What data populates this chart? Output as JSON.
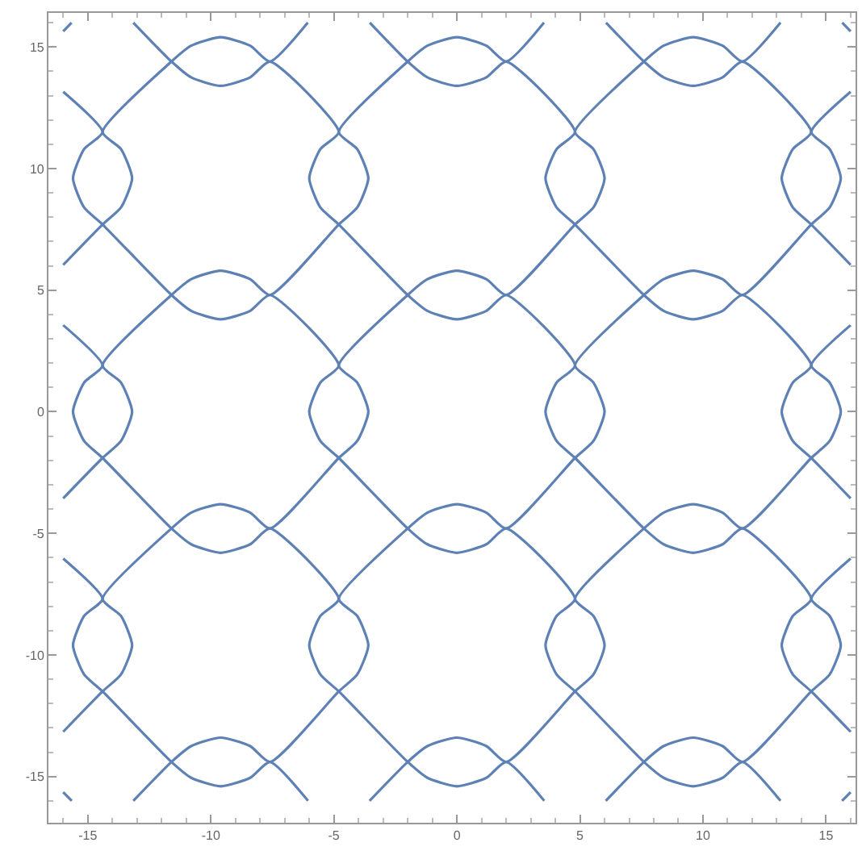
{
  "chart_data": {
    "type": "line",
    "xlim": [
      -16.6,
      16.2
    ],
    "ylim": [
      -16.9,
      16.4
    ],
    "xticks": [
      -15,
      -10,
      -5,
      0,
      5,
      10,
      15
    ],
    "yticks": [
      -15,
      -10,
      -5,
      0,
      5,
      10,
      15
    ],
    "grid": false,
    "series": [
      {
        "color": "#5e81b5",
        "x": [
          -16,
          -15.66
        ],
        "values": [
          15.64,
          16
        ]
      },
      {
        "color": "#5e81b5",
        "x": [
          -16,
          -14.4,
          -13.65,
          -13.2,
          -13.65,
          -14.4,
          -11.6,
          -10.8,
          -9.6,
          -8.4,
          -7.6,
          -6.06
        ],
        "values": [
          6.04,
          7.7,
          8.4,
          9.6,
          10.8,
          11.5,
          14.4,
          15.05,
          15.4,
          15.05,
          14.4,
          16
        ]
      },
      {
        "color": "#5e81b5",
        "x": [
          -16,
          -14.4,
          -13.65,
          -13.2,
          -13.65,
          -14.4,
          -11.6,
          -10.8,
          -9.6,
          -8.4,
          -7.6,
          -4.8,
          -4.05,
          -3.6,
          -4.05,
          -4.8,
          -2,
          -1.2,
          0,
          1.2,
          2,
          3.54
        ],
        "values": [
          -3.56,
          -1.9,
          -1.2,
          0,
          1.2,
          1.9,
          4.8,
          5.45,
          5.8,
          5.45,
          4.8,
          7.7,
          8.4,
          9.6,
          10.8,
          11.5,
          14.4,
          15.05,
          15.4,
          15.05,
          14.4,
          16
        ]
      },
      {
        "color": "#5e81b5",
        "x": [
          -16,
          -14.4,
          -13.65,
          -13.2,
          -13.65,
          -14.4,
          -11.6,
          -10.8,
          -9.6,
          -8.4,
          -7.6,
          -4.8,
          -4.05,
          -3.6,
          -4.05,
          -4.8,
          -2,
          -1.2,
          0,
          1.2,
          2,
          4.8,
          5.55,
          6,
          5.55,
          4.8,
          7.6,
          8.4,
          9.6,
          10.8,
          11.6,
          13.15
        ],
        "values": [
          -13.16,
          -11.5,
          -10.8,
          -9.6,
          -8.4,
          -7.7,
          -4.8,
          -4.15,
          -3.8,
          -4.15,
          -4.8,
          -1.9,
          -1.2,
          0,
          1.2,
          1.9,
          4.8,
          5.45,
          5.8,
          5.45,
          4.8,
          7.7,
          8.4,
          9.6,
          10.8,
          11.5,
          14.4,
          15.05,
          15.4,
          15.05,
          14.4,
          16
        ]
      },
      {
        "color": "#5e81b5",
        "x": [
          -13.15,
          -11.6,
          -10.8,
          -9.6,
          -8.4,
          -7.6,
          -4.8,
          -4.05,
          -3.6,
          -4.05,
          -4.8,
          -2,
          -1.2,
          0,
          1.2,
          2,
          4.8,
          5.55,
          6,
          5.55,
          4.8,
          7.6,
          8.4,
          9.6,
          10.8,
          11.6,
          14.4,
          15.15,
          15.6,
          15.15,
          14.4,
          16
        ],
        "values": [
          -16,
          -14.4,
          -13.75,
          -13.4,
          -13.75,
          -14.4,
          -11.5,
          -10.8,
          -9.6,
          -8.4,
          -7.7,
          -4.8,
          -4.15,
          -3.8,
          -4.15,
          -4.8,
          -1.9,
          -1.2,
          0,
          1.2,
          1.9,
          4.8,
          5.45,
          5.8,
          5.45,
          4.8,
          7.7,
          8.4,
          9.6,
          10.8,
          11.5,
          13.16
        ]
      },
      {
        "color": "#5e81b5",
        "x": [
          -3.55,
          -2,
          -1.2,
          0,
          1.2,
          2,
          4.8,
          5.55,
          6,
          5.55,
          4.8,
          7.6,
          8.4,
          9.6,
          10.8,
          11.6,
          14.4,
          15.15,
          15.6,
          15.15,
          14.4,
          16
        ],
        "values": [
          -16,
          -14.4,
          -13.75,
          -13.4,
          -13.75,
          -14.4,
          -11.5,
          -10.8,
          -9.6,
          -8.4,
          -7.7,
          -4.8,
          -4.15,
          -3.8,
          -4.15,
          -4.8,
          -1.9,
          -1.2,
          0,
          1.2,
          1.9,
          3.56
        ]
      },
      {
        "color": "#5e81b5",
        "x": [
          6.05,
          7.6,
          8.4,
          9.6,
          10.8,
          11.6,
          14.4,
          15.15,
          15.6,
          15.15,
          14.4,
          16
        ],
        "values": [
          -16,
          -14.4,
          -13.75,
          -13.4,
          -13.75,
          -14.4,
          -11.5,
          -10.8,
          -9.6,
          -8.4,
          -7.7,
          -6.04
        ]
      },
      {
        "color": "#5e81b5",
        "x": [
          15.65,
          16
        ],
        "values": [
          -16,
          -15.64
        ]
      },
      {
        "color": "#5e81b5",
        "x": [
          16,
          15.66
        ],
        "values": [
          15.64,
          16
        ]
      },
      {
        "color": "#5e81b5",
        "x": [
          16,
          14.4,
          13.65,
          13.2,
          13.65,
          14.4,
          11.6,
          10.8,
          9.6,
          8.4,
          7.6,
          6.06
        ],
        "values": [
          6.04,
          7.7,
          8.4,
          9.6,
          10.8,
          11.5,
          14.4,
          13.75,
          13.4,
          13.75,
          14.4,
          16
        ]
      },
      {
        "color": "#5e81b5",
        "x": [
          16,
          14.4,
          13.65,
          13.2,
          13.65,
          14.4,
          11.6,
          10.8,
          9.6,
          8.4,
          7.6,
          4.8,
          4.05,
          3.6,
          4.05,
          4.8,
          2,
          1.2,
          0,
          -1.2,
          -2,
          -3.54
        ],
        "values": [
          -3.56,
          -1.9,
          -1.2,
          0,
          1.2,
          1.9,
          4.8,
          4.15,
          3.8,
          4.15,
          4.8,
          7.7,
          8.4,
          9.6,
          10.8,
          11.5,
          14.4,
          13.75,
          13.4,
          13.75,
          14.4,
          16
        ]
      },
      {
        "color": "#5e81b5",
        "x": [
          16,
          14.4,
          13.65,
          13.2,
          13.65,
          14.4,
          11.6,
          10.8,
          9.6,
          8.4,
          7.6,
          4.8,
          4.05,
          3.6,
          4.05,
          4.8,
          2,
          1.2,
          0,
          -1.2,
          -2,
          -4.8,
          -5.55,
          -6,
          -5.55,
          -4.8,
          -7.6,
          -8.4,
          -9.6,
          -10.8,
          -11.6,
          -13.15
        ],
        "values": [
          -13.16,
          -11.5,
          -10.8,
          -9.6,
          -8.4,
          -7.7,
          -4.8,
          -5.45,
          -5.8,
          -5.45,
          -4.8,
          -1.9,
          -1.2,
          0,
          1.2,
          1.9,
          4.8,
          4.15,
          3.8,
          4.15,
          4.8,
          7.7,
          8.4,
          9.6,
          10.8,
          11.5,
          14.4,
          13.75,
          13.4,
          13.75,
          14.4,
          16
        ]
      },
      {
        "color": "#5e81b5",
        "x": [
          13.15,
          11.6,
          10.8,
          9.6,
          8.4,
          7.6,
          4.8,
          4.05,
          3.6,
          4.05,
          4.8,
          2,
          1.2,
          0,
          -1.2,
          -2,
          -4.8,
          -5.55,
          -6,
          -5.55,
          -4.8,
          -7.6,
          -8.4,
          -9.6,
          -10.8,
          -11.6,
          -14.4,
          -15.15,
          -15.6,
          -15.15,
          -14.4,
          -16
        ],
        "values": [
          -16,
          -14.4,
          -15.05,
          -15.4,
          -15.05,
          -14.4,
          -11.5,
          -10.8,
          -9.6,
          -8.4,
          -7.7,
          -4.8,
          -5.45,
          -5.8,
          -5.45,
          -4.8,
          -1.9,
          -1.2,
          0,
          1.2,
          1.9,
          4.8,
          4.15,
          3.8,
          4.15,
          4.8,
          7.7,
          8.4,
          9.6,
          10.8,
          11.5,
          13.16
        ]
      },
      {
        "color": "#5e81b5",
        "x": [
          3.55,
          2,
          1.2,
          0,
          -1.2,
          -2,
          -4.8,
          -5.55,
          -6,
          -5.55,
          -4.8,
          -7.6,
          -8.4,
          -9.6,
          -10.8,
          -11.6,
          -14.4,
          -15.15,
          -15.6,
          -15.15,
          -14.4,
          -16
        ],
        "values": [
          -16,
          -14.4,
          -15.05,
          -15.4,
          -15.05,
          -14.4,
          -11.5,
          -10.8,
          -9.6,
          -8.4,
          -7.7,
          -4.8,
          -5.45,
          -5.8,
          -5.45,
          -4.8,
          -1.9,
          -1.2,
          0,
          1.2,
          1.9,
          3.56
        ]
      },
      {
        "color": "#5e81b5",
        "x": [
          -6.05,
          -7.6,
          -8.4,
          -9.6,
          -10.8,
          -11.6,
          -14.4,
          -15.15,
          -15.6,
          -15.15,
          -14.4,
          -16
        ],
        "values": [
          -16,
          -14.4,
          -15.05,
          -15.4,
          -15.05,
          -14.4,
          -11.5,
          -10.8,
          -9.6,
          -8.4,
          -7.7,
          -6.04
        ]
      },
      {
        "color": "#5e81b5",
        "x": [
          -15.65,
          -16
        ],
        "values": [
          -16,
          -15.64
        ]
      }
    ]
  }
}
